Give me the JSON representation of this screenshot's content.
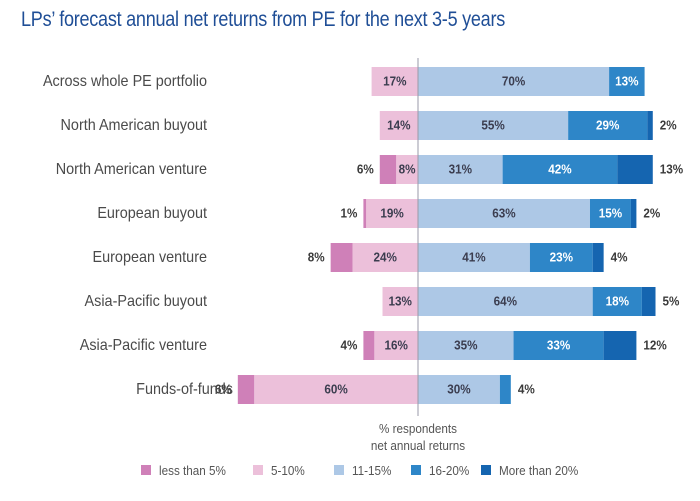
{
  "chart_data": {
    "type": "bar",
    "orientation": "horizontal-diverging-stacked",
    "title": "LPs’ forecast annual net returns from PE for the next 3-5 years",
    "xlabel": "% respondents net annual returns",
    "xlabel_lines": [
      "% respondents",
      "net annual returns"
    ],
    "ylabel": "",
    "grid": false,
    "legend_position": "bottom",
    "categories": [
      "Across whole PE portfolio",
      "North American buyout",
      "North American venture",
      "European buyout",
      "European venture",
      "Asia-Pacific buyout",
      "Asia-Pacific venture",
      "Funds-of-funds"
    ],
    "series": [
      {
        "name": "less than 5%",
        "side": "left",
        "color": "#cf80b8",
        "values": [
          0,
          0,
          6,
          1,
          8,
          0,
          4,
          6
        ]
      },
      {
        "name": "5-10%",
        "side": "left",
        "color": "#ecc0da",
        "values": [
          17,
          14,
          8,
          19,
          24,
          13,
          16,
          60
        ]
      },
      {
        "name": "11-15%",
        "side": "right",
        "color": "#adc8e6",
        "values": [
          70,
          55,
          31,
          63,
          41,
          64,
          35,
          30
        ]
      },
      {
        "name": "16-20%",
        "side": "right",
        "color": "#2e86c8",
        "values": [
          13,
          29,
          42,
          15,
          23,
          18,
          33,
          4
        ]
      },
      {
        "name": "More than 20%",
        "side": "right",
        "color": "#1565b0",
        "values": [
          0,
          2,
          13,
          2,
          4,
          5,
          12,
          0
        ]
      }
    ],
    "legend": [
      {
        "label": "less than 5%",
        "color": "#cf80b8"
      },
      {
        "label": "5-10%",
        "color": "#ecc0da"
      },
      {
        "label": "11-15%",
        "color": "#adc8e6"
      },
      {
        "label": "16-20%",
        "color": "#2e86c8"
      },
      {
        "label": "More than 20%",
        "color": "#1565b0"
      }
    ],
    "title_color": "#1f4e96"
  }
}
